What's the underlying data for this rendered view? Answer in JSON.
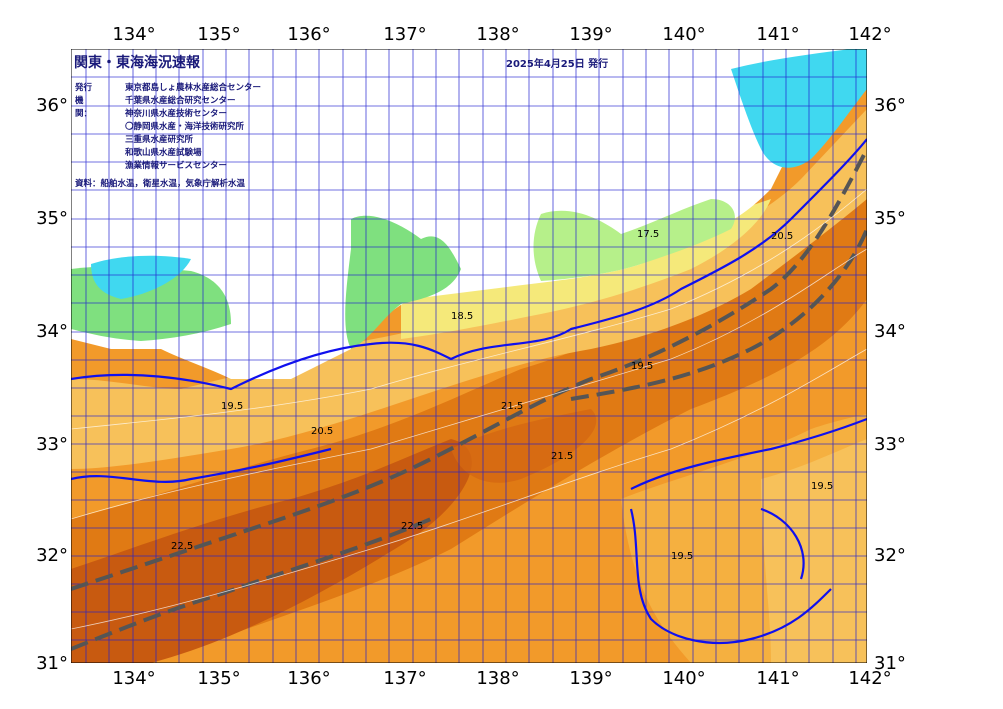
{
  "map": {
    "title": "関東・東海海況速報",
    "issued": "2025年4月25日 発行",
    "agencies_label": "発行機関：",
    "agencies": [
      "東京都島しょ農林水産総合センター",
      "千葉県水産総合研究センター",
      "神奈川県水産技術センター",
      "〇静岡県水産・海洋技術研究所",
      "三重県水産研究所",
      "和歌山県水産試験場",
      "漁業情報サービスセンター"
    ],
    "source": "資料：船舶水温，衛星水温，気象庁解析水温",
    "lon_ticks": [
      "134°",
      "135°",
      "136°",
      "137°",
      "138°",
      "139°",
      "140°",
      "141°",
      "142°"
    ],
    "lat_ticks": [
      "36°",
      "35°",
      "34°",
      "33°",
      "32°",
      "31°"
    ],
    "contour_labels": [
      "17.5",
      "18.5",
      "19.5",
      "20.5",
      "21.5",
      "22.5"
    ],
    "colors": {
      "land_green": "#7fe07f",
      "land_light": "#b6f08a",
      "sea_cyan": "#40d8f0",
      "yellow_band": "#f5e97a",
      "sst_light_orange": "#f7c15a",
      "sst_orange": "#f29a2a",
      "sst_dark_orange": "#e07a14",
      "sst_brown": "#c85a10",
      "grid_blue": "#2020d0",
      "kuroshio_axis": "#555555"
    }
  }
}
